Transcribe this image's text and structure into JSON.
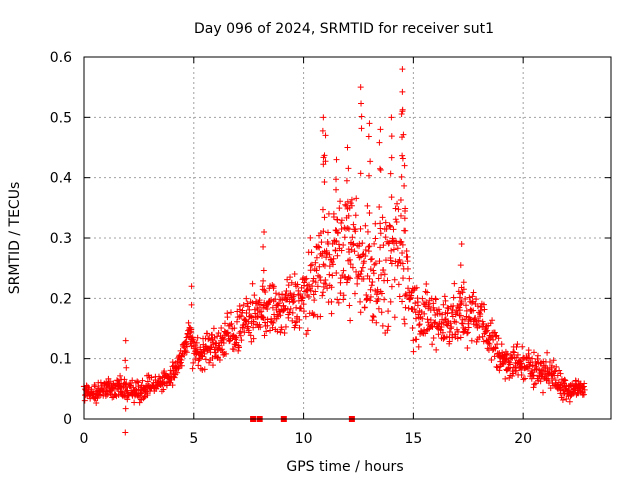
{
  "chart_data": {
    "type": "scatter",
    "title": "Day 096 of 2024, SRMTID for receiver sut1",
    "xlabel": "GPS time / hours",
    "ylabel": "SRMTID / TECUs",
    "xlim": [
      0,
      24
    ],
    "ylim": [
      0,
      0.6
    ],
    "xticks": [
      0,
      5,
      10,
      15,
      20
    ],
    "yticks": [
      0,
      0.1,
      0.2,
      0.3,
      0.4,
      0.5,
      0.6
    ],
    "xtick_labels": [
      "0",
      "5",
      "10",
      "15",
      "20"
    ],
    "ytick_labels": [
      "0",
      "0.1",
      "0.2",
      "0.3",
      "0.4",
      "0.5",
      "0.6"
    ],
    "grid": true,
    "color": "#ff0000",
    "marker": "+",
    "series": [
      {
        "name": "SRMTID",
        "profile": [
          {
            "x": 0.0,
            "y": 0.04,
            "spread": 0.02
          },
          {
            "x": 1.0,
            "y": 0.05,
            "spread": 0.02
          },
          {
            "x": 2.0,
            "y": 0.05,
            "spread": 0.025
          },
          {
            "x": 2.5,
            "y": 0.045,
            "spread": 0.02
          },
          {
            "x": 3.0,
            "y": 0.055,
            "spread": 0.02
          },
          {
            "x": 3.5,
            "y": 0.06,
            "spread": 0.02
          },
          {
            "x": 4.0,
            "y": 0.07,
            "spread": 0.02
          },
          {
            "x": 4.5,
            "y": 0.11,
            "spread": 0.025
          },
          {
            "x": 4.8,
            "y": 0.15,
            "spread": 0.03
          },
          {
            "x": 5.0,
            "y": 0.11,
            "spread": 0.03
          },
          {
            "x": 6.0,
            "y": 0.12,
            "spread": 0.04
          },
          {
            "x": 7.0,
            "y": 0.15,
            "spread": 0.05
          },
          {
            "x": 8.0,
            "y": 0.18,
            "spread": 0.05
          },
          {
            "x": 9.0,
            "y": 0.18,
            "spread": 0.06
          },
          {
            "x": 10.0,
            "y": 0.2,
            "spread": 0.07
          },
          {
            "x": 11.0,
            "y": 0.27,
            "spread": 0.1
          },
          {
            "x": 12.0,
            "y": 0.28,
            "spread": 0.12
          },
          {
            "x": 13.0,
            "y": 0.25,
            "spread": 0.12
          },
          {
            "x": 14.0,
            "y": 0.25,
            "spread": 0.12
          },
          {
            "x": 14.5,
            "y": 0.28,
            "spread": 0.13
          },
          {
            "x": 15.0,
            "y": 0.18,
            "spread": 0.07
          },
          {
            "x": 16.0,
            "y": 0.16,
            "spread": 0.06
          },
          {
            "x": 17.0,
            "y": 0.17,
            "spread": 0.06
          },
          {
            "x": 18.0,
            "y": 0.17,
            "spread": 0.05
          },
          {
            "x": 19.0,
            "y": 0.1,
            "spread": 0.04
          },
          {
            "x": 20.0,
            "y": 0.09,
            "spread": 0.035
          },
          {
            "x": 21.0,
            "y": 0.08,
            "spread": 0.035
          },
          {
            "x": 22.0,
            "y": 0.05,
            "spread": 0.025
          },
          {
            "x": 22.8,
            "y": 0.05,
            "spread": 0.02
          }
        ],
        "peaks": [
          {
            "x": 10.9,
            "y": 0.5
          },
          {
            "x": 11.0,
            "y": 0.47
          },
          {
            "x": 11.5,
            "y": 0.43
          },
          {
            "x": 12.0,
            "y": 0.45
          },
          {
            "x": 12.6,
            "y": 0.55
          },
          {
            "x": 13.0,
            "y": 0.49
          },
          {
            "x": 13.5,
            "y": 0.48
          },
          {
            "x": 14.0,
            "y": 0.5
          },
          {
            "x": 14.5,
            "y": 0.58
          },
          {
            "x": 14.5,
            "y": 0.51
          },
          {
            "x": 14.6,
            "y": 0.42
          },
          {
            "x": 12.1,
            "y": 0.35
          },
          {
            "x": 8.2,
            "y": 0.31
          },
          {
            "x": 4.9,
            "y": 0.22
          },
          {
            "x": 17.2,
            "y": 0.29
          },
          {
            "x": 1.9,
            "y": 0.13
          }
        ]
      }
    ],
    "axis_markers_x": [
      7.7,
      8.0,
      9.1,
      12.2
    ]
  }
}
